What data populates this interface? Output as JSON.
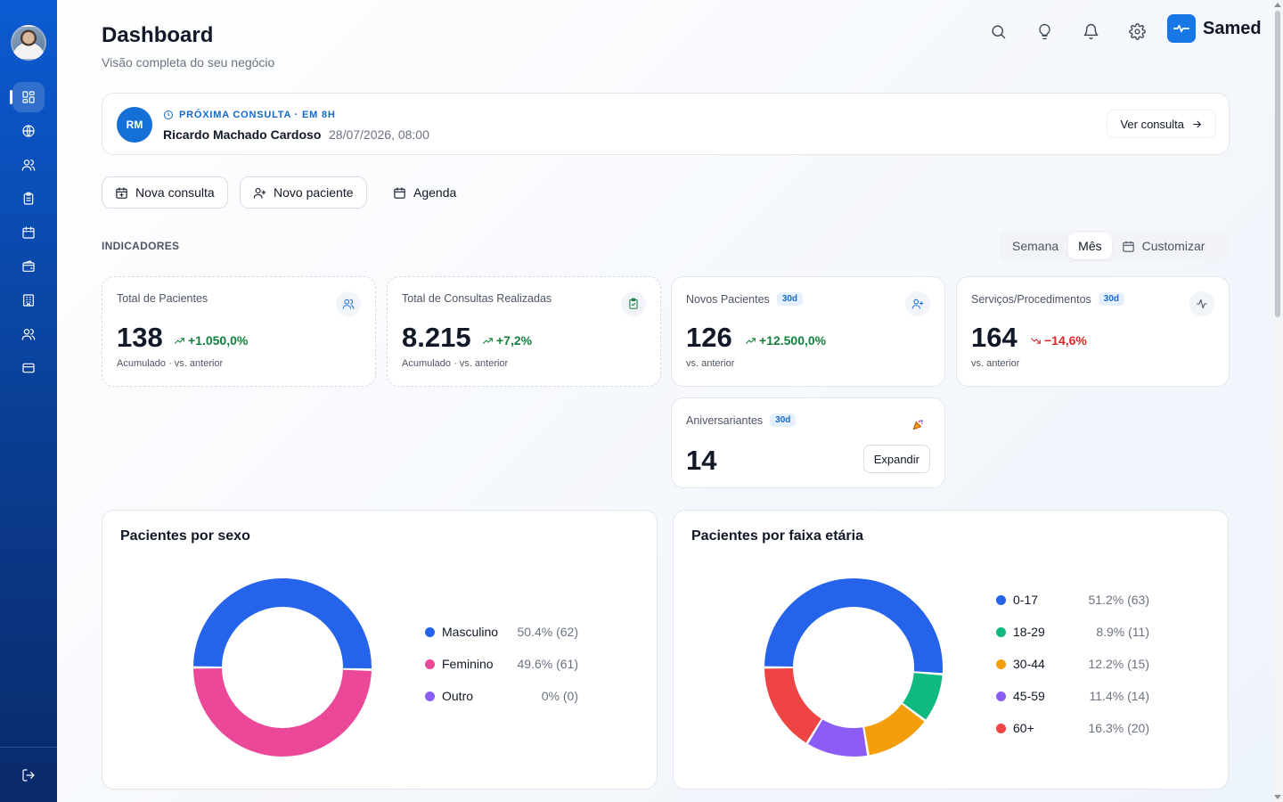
{
  "sidebar": {
    "avatar_alt": "user-avatar",
    "items": [
      {
        "name": "dashboard",
        "icon": "grid-icon",
        "active": true
      },
      {
        "name": "globe",
        "icon": "globe-icon",
        "active": false
      },
      {
        "name": "patients",
        "icon": "users-icon",
        "active": false
      },
      {
        "name": "records",
        "icon": "clipboard-icon",
        "active": false
      },
      {
        "name": "calendar",
        "icon": "calendar-icon",
        "active": false
      },
      {
        "name": "wallet",
        "icon": "wallet-icon",
        "active": false
      },
      {
        "name": "building",
        "icon": "building-icon",
        "active": false
      },
      {
        "name": "team",
        "icon": "users-icon",
        "active": false
      },
      {
        "name": "billing",
        "icon": "credit-card-icon",
        "active": false
      }
    ],
    "logout_icon": "logout-icon"
  },
  "header": {
    "title": "Dashboard",
    "subtitle": "Visão completa do seu negócio",
    "icons": [
      "search-icon",
      "lightbulb-icon",
      "bell-icon",
      "gear-icon"
    ],
    "brand": "Samed"
  },
  "next_appointment": {
    "initials": "RM",
    "label": "PRÓXIMA CONSULTA · EM 8H",
    "patient": "Ricardo Machado Cardoso",
    "datetime": "28/07/2026, 08:00",
    "button": "Ver consulta"
  },
  "actions": {
    "new_appointment": "Nova consulta",
    "new_patient": "Novo paciente",
    "schedule": "Agenda"
  },
  "indicators": {
    "label": "INDICADORES",
    "range": {
      "week": "Semana",
      "month": "Mês",
      "custom": "Customizar",
      "selected": "Mês"
    },
    "kpis": [
      {
        "title": "Total de Pacientes",
        "value": "138",
        "delta": "+1.050,0%",
        "trend": "up",
        "note": "Acumulado · vs. anterior"
      },
      {
        "title": "Total de Consultas Realizadas",
        "value": "8.215",
        "delta": "+7,2%",
        "trend": "up",
        "note": "Acumulado · vs. anterior"
      },
      {
        "title": "Novos Pacientes",
        "badge": "30d",
        "value": "126",
        "delta": "+12.500,0%",
        "trend": "up",
        "note": "vs. anterior"
      },
      {
        "title": "Serviços/Procedimentos",
        "badge": "30d",
        "value": "164",
        "delta": "−14,6%",
        "trend": "down",
        "note": "vs. anterior"
      },
      {
        "title": "Aniversariantes",
        "badge": "30d",
        "value": "14",
        "button": "Expandir"
      }
    ]
  },
  "charts": {
    "sex": {
      "title": "Pacientes por sexo",
      "chart_data": {
        "type": "pie",
        "categories": [
          "Masculino",
          "Feminino",
          "Outro"
        ],
        "values": [
          62,
          61,
          0
        ],
        "labels": [
          "50.4% (62)",
          "49.6% (61)",
          "0% (0)"
        ],
        "colors": [
          "#2563eb",
          "#ec4899",
          "#8b5cf6"
        ]
      }
    },
    "age": {
      "title": "Pacientes por faixa etária",
      "chart_data": {
        "type": "pie",
        "categories": [
          "0-17",
          "18-29",
          "30-44",
          "45-59",
          "60+"
        ],
        "values": [
          63,
          11,
          15,
          14,
          20
        ],
        "labels": [
          "51.2% (63)",
          "8.9% (11)",
          "12.2% (15)",
          "11.4% (14)",
          "16.3% (20)"
        ],
        "colors": [
          "#2563eb",
          "#10b981",
          "#f59e0b",
          "#8b5cf6",
          "#ef4444"
        ]
      }
    }
  }
}
